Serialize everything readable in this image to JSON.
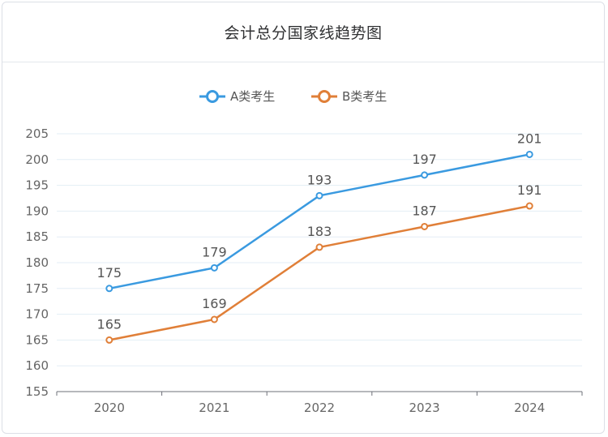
{
  "header": {
    "title": "会计总分国家线趋势图"
  },
  "chart_data": {
    "type": "line",
    "title": "会计总分国家线趋势图",
    "categories": [
      "2020",
      "2021",
      "2022",
      "2023",
      "2024"
    ],
    "series": [
      {
        "name": "A类考生",
        "values": [
          175,
          179,
          193,
          197,
          201
        ],
        "color": "#3a9ae0"
      },
      {
        "name": "B类考生",
        "values": [
          165,
          169,
          183,
          187,
          191
        ],
        "color": "#e07f38"
      }
    ],
    "ylim": [
      155,
      205
    ],
    "y_ticks": [
      155,
      160,
      165,
      170,
      175,
      180,
      185,
      190,
      195,
      200,
      205
    ],
    "grid": true,
    "legend_position": "top-center",
    "data_labels": true
  }
}
